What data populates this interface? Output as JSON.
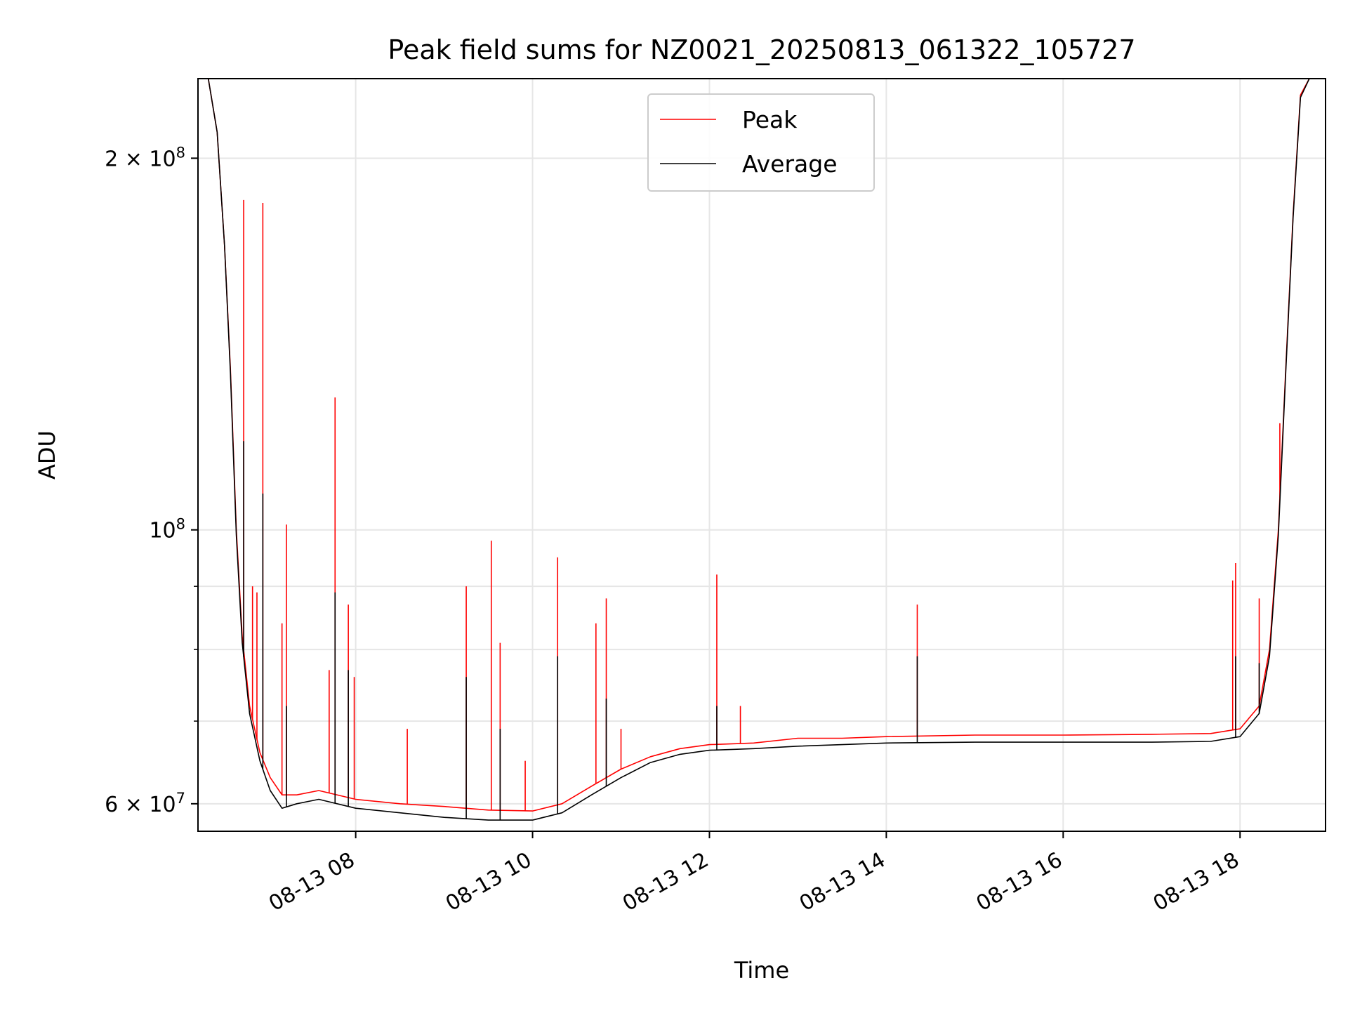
{
  "chart_data": {
    "type": "line",
    "title": "Peak field sums for NZ0021_20250813_061322_105727",
    "xlabel": "Time",
    "ylabel": "ADU",
    "y_scale": "log",
    "ylim": [
      57000000,
      232000000
    ],
    "xlim": [
      "2025-08-13 06:13",
      "2025-08-13 18:58"
    ],
    "grid": true,
    "legend_position": "top-center",
    "x_ticks": [
      {
        "value": "2025-08-13 08:00",
        "label": "08-13 08"
      },
      {
        "value": "2025-08-13 10:00",
        "label": "08-13 10"
      },
      {
        "value": "2025-08-13 12:00",
        "label": "08-13 12"
      },
      {
        "value": "2025-08-13 14:00",
        "label": "08-13 14"
      },
      {
        "value": "2025-08-13 16:00",
        "label": "08-13 16"
      },
      {
        "value": "2025-08-13 18:00",
        "label": "08-13 18"
      }
    ],
    "y_ticks": [
      {
        "value": 60000000,
        "label": "6 × 10",
        "exp": "7"
      },
      {
        "value": 100000000,
        "label": "10",
        "exp": "8"
      },
      {
        "value": 200000000,
        "label": "2 × 10",
        "exp": "8"
      }
    ],
    "y_minor_ticks": [
      70000000,
      80000000,
      90000000
    ],
    "series": [
      {
        "name": "Peak",
        "color": "#ff0000",
        "points": [
          [
            "2025-08-13 06:13",
            232000000
          ],
          [
            "2025-08-13 06:20",
            232000000
          ],
          [
            "2025-08-13 06:26",
            210000000
          ],
          [
            "2025-08-13 06:31",
            170000000
          ],
          [
            "2025-08-13 06:35",
            135000000
          ],
          [
            "2025-08-13 06:39",
            100000000
          ],
          [
            "2025-08-13 06:43",
            82000000
          ],
          [
            "2025-08-13 06:48",
            72000000
          ],
          [
            "2025-08-13 06:55",
            66000000
          ],
          [
            "2025-08-13 07:02",
            63000000
          ],
          [
            "2025-08-13 07:10",
            61000000
          ],
          [
            "2025-08-13 07:20",
            61000000
          ],
          [
            "2025-08-13 07:35",
            61500000
          ],
          [
            "2025-08-13 08:00",
            60500000
          ],
          [
            "2025-08-13 08:30",
            60000000
          ],
          [
            "2025-08-13 09:00",
            59700000
          ],
          [
            "2025-08-13 09:30",
            59300000
          ],
          [
            "2025-08-13 10:00",
            59200000
          ],
          [
            "2025-08-13 10:20",
            60000000
          ],
          [
            "2025-08-13 10:40",
            62000000
          ],
          [
            "2025-08-13 11:00",
            64000000
          ],
          [
            "2025-08-13 11:20",
            65500000
          ],
          [
            "2025-08-13 11:40",
            66500000
          ],
          [
            "2025-08-13 12:00",
            67000000
          ],
          [
            "2025-08-13 12:30",
            67200000
          ],
          [
            "2025-08-13 13:00",
            67800000
          ],
          [
            "2025-08-13 13:30",
            67800000
          ],
          [
            "2025-08-13 14:00",
            68000000
          ],
          [
            "2025-08-13 15:00",
            68200000
          ],
          [
            "2025-08-13 16:00",
            68200000
          ],
          [
            "2025-08-13 17:00",
            68300000
          ],
          [
            "2025-08-13 17:40",
            68400000
          ],
          [
            "2025-08-13 18:00",
            69000000
          ],
          [
            "2025-08-13 18:13",
            72000000
          ],
          [
            "2025-08-13 18:20",
            80000000
          ],
          [
            "2025-08-13 18:26",
            100000000
          ],
          [
            "2025-08-13 18:31",
            135000000
          ],
          [
            "2025-08-13 18:36",
            180000000
          ],
          [
            "2025-08-13 18:41",
            225000000
          ],
          [
            "2025-08-13 18:47",
            232000000
          ],
          [
            "2025-08-13 18:58",
            232000000
          ]
        ],
        "spikes": [
          [
            "2025-08-13 06:44",
            185000000
          ],
          [
            "2025-08-13 06:50",
            90000000
          ],
          [
            "2025-08-13 06:53",
            89000000
          ],
          [
            "2025-08-13 06:57",
            184000000
          ],
          [
            "2025-08-13 07:10",
            84000000
          ],
          [
            "2025-08-13 07:13",
            101000000
          ],
          [
            "2025-08-13 07:42",
            77000000
          ],
          [
            "2025-08-13 07:46",
            128000000
          ],
          [
            "2025-08-13 07:55",
            87000000
          ],
          [
            "2025-08-13 07:59",
            76000000
          ],
          [
            "2025-08-13 08:35",
            69000000
          ],
          [
            "2025-08-13 09:15",
            90000000
          ],
          [
            "2025-08-13 09:32",
            98000000
          ],
          [
            "2025-08-13 09:38",
            81000000
          ],
          [
            "2025-08-13 09:55",
            65000000
          ],
          [
            "2025-08-13 10:17",
            95000000
          ],
          [
            "2025-08-13 10:43",
            84000000
          ],
          [
            "2025-08-13 10:50",
            88000000
          ],
          [
            "2025-08-13 11:00",
            69000000
          ],
          [
            "2025-08-13 12:05",
            92000000
          ],
          [
            "2025-08-13 12:21",
            72000000
          ],
          [
            "2025-08-13 14:21",
            87000000
          ],
          [
            "2025-08-13 17:55",
            91000000
          ],
          [
            "2025-08-13 17:57",
            94000000
          ],
          [
            "2025-08-13 18:13",
            88000000
          ],
          [
            "2025-08-13 18:27",
            122000000
          ]
        ]
      },
      {
        "name": "Average",
        "color": "#000000",
        "points": [
          [
            "2025-08-13 06:13",
            232000000
          ],
          [
            "2025-08-13 06:20",
            232000000
          ],
          [
            "2025-08-13 06:26",
            210000000
          ],
          [
            "2025-08-13 06:31",
            170000000
          ],
          [
            "2025-08-13 06:35",
            134000000
          ],
          [
            "2025-08-13 06:39",
            99000000
          ],
          [
            "2025-08-13 06:43",
            81000000
          ],
          [
            "2025-08-13 06:48",
            71000000
          ],
          [
            "2025-08-13 06:55",
            65000000
          ],
          [
            "2025-08-13 07:02",
            61500000
          ],
          [
            "2025-08-13 07:10",
            59500000
          ],
          [
            "2025-08-13 07:20",
            60000000
          ],
          [
            "2025-08-13 07:35",
            60500000
          ],
          [
            "2025-08-13 08:00",
            59500000
          ],
          [
            "2025-08-13 08:30",
            59000000
          ],
          [
            "2025-08-13 09:00",
            58500000
          ],
          [
            "2025-08-13 09:30",
            58200000
          ],
          [
            "2025-08-13 10:00",
            58200000
          ],
          [
            "2025-08-13 10:20",
            59000000
          ],
          [
            "2025-08-13 10:40",
            61000000
          ],
          [
            "2025-08-13 11:00",
            63000000
          ],
          [
            "2025-08-13 11:20",
            64800000
          ],
          [
            "2025-08-13 11:40",
            65800000
          ],
          [
            "2025-08-13 12:00",
            66300000
          ],
          [
            "2025-08-13 12:30",
            66500000
          ],
          [
            "2025-08-13 13:00",
            66800000
          ],
          [
            "2025-08-13 13:30",
            67000000
          ],
          [
            "2025-08-13 14:00",
            67200000
          ],
          [
            "2025-08-13 15:00",
            67300000
          ],
          [
            "2025-08-13 16:00",
            67300000
          ],
          [
            "2025-08-13 17:00",
            67300000
          ],
          [
            "2025-08-13 17:40",
            67400000
          ],
          [
            "2025-08-13 18:00",
            68000000
          ],
          [
            "2025-08-13 18:13",
            71000000
          ],
          [
            "2025-08-13 18:20",
            79000000
          ],
          [
            "2025-08-13 18:26",
            99000000
          ],
          [
            "2025-08-13 18:31",
            134000000
          ],
          [
            "2025-08-13 18:36",
            179000000
          ],
          [
            "2025-08-13 18:41",
            224000000
          ],
          [
            "2025-08-13 18:47",
            232000000
          ],
          [
            "2025-08-13 18:58",
            232000000
          ]
        ],
        "spikes": [
          [
            "2025-08-13 06:44",
            118000000
          ],
          [
            "2025-08-13 06:57",
            107000000
          ],
          [
            "2025-08-13 07:13",
            72000000
          ],
          [
            "2025-08-13 07:46",
            89000000
          ],
          [
            "2025-08-13 07:55",
            77000000
          ],
          [
            "2025-08-13 09:15",
            76000000
          ],
          [
            "2025-08-13 09:38",
            69000000
          ],
          [
            "2025-08-13 10:17",
            79000000
          ],
          [
            "2025-08-13 10:50",
            73000000
          ],
          [
            "2025-08-13 12:05",
            72000000
          ],
          [
            "2025-08-13 14:21",
            79000000
          ],
          [
            "2025-08-13 17:57",
            79000000
          ],
          [
            "2025-08-13 18:13",
            78000000
          ]
        ]
      }
    ]
  }
}
